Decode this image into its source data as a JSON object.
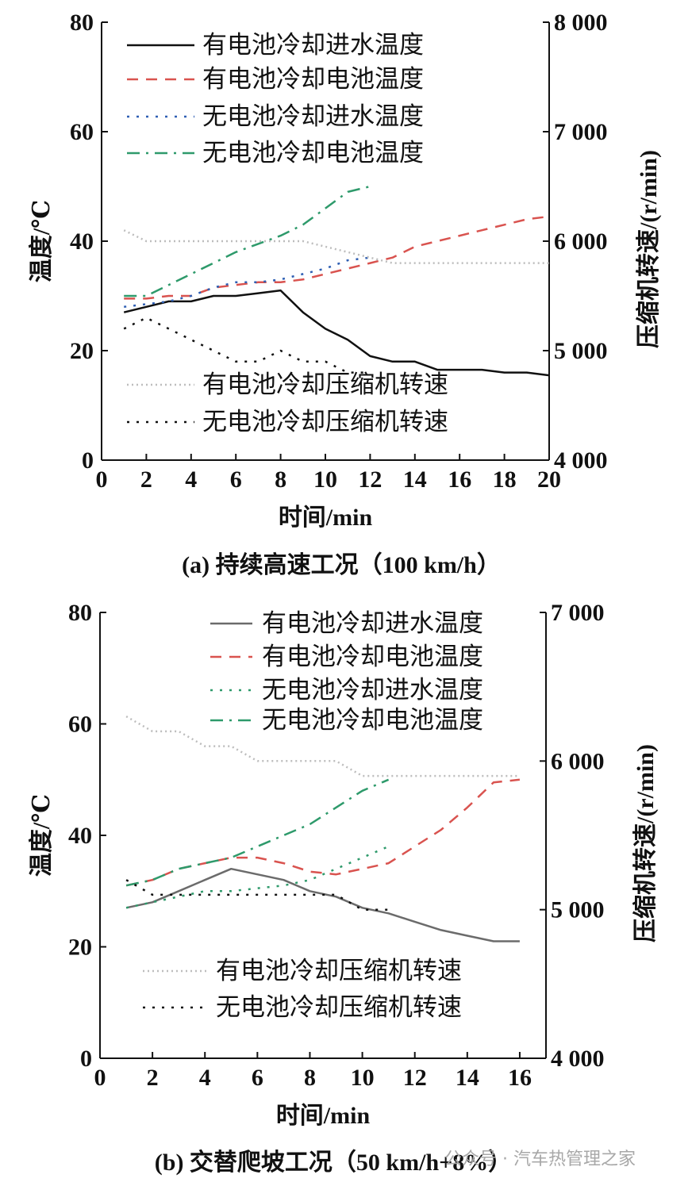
{
  "chart_data": [
    {
      "type": "line",
      "caption": "(a)  持续高速工况（100 km/h）",
      "xlabel": "时间/min",
      "ylabel": "温度/℃",
      "y2label": "压缩机转速/(r/min)",
      "xlim": [
        0,
        20
      ],
      "ylim": [
        0,
        80
      ],
      "y2lim": [
        4000,
        8000
      ],
      "xticks": [
        0,
        2,
        4,
        6,
        8,
        10,
        12,
        14,
        16,
        18,
        20
      ],
      "yticks": [
        0,
        20,
        40,
        60,
        80
      ],
      "y2ticks": [
        4000,
        5000,
        6000,
        7000,
        8000
      ],
      "y2ticklabels": [
        "4 000",
        "5 000",
        "6 000",
        "7 000",
        "8 000"
      ],
      "series": [
        {
          "name": "有电池冷却进水温度",
          "axis": "left",
          "color": "#111111",
          "style": "solid",
          "x": [
            1,
            2,
            3,
            4,
            5,
            6,
            7,
            8,
            9,
            10,
            11,
            12,
            13,
            14,
            15,
            16,
            17,
            18,
            19,
            20
          ],
          "y": [
            27,
            28,
            29,
            29,
            30,
            30,
            30.5,
            31,
            27,
            24,
            22,
            19,
            18,
            18,
            16.5,
            16.5,
            16.5,
            16,
            16,
            15.5
          ]
        },
        {
          "name": "有电池冷却电池温度",
          "axis": "left",
          "color": "#d9534f",
          "style": "dash",
          "x": [
            1,
            2,
            3,
            4,
            5,
            6,
            7,
            8,
            9,
            10,
            11,
            12,
            13,
            14,
            15,
            16,
            17,
            18,
            19,
            20
          ],
          "y": [
            29.5,
            29.5,
            30,
            30,
            31.5,
            32,
            32.5,
            32.5,
            33,
            34,
            35,
            36,
            37,
            39,
            40,
            41,
            42,
            43,
            44,
            44.5
          ]
        },
        {
          "name": "无电池冷却进水温度",
          "axis": "left",
          "color": "#2f5fb3",
          "style": "dot",
          "x": [
            1,
            2,
            3,
            4,
            5,
            6,
            7,
            8,
            9,
            10,
            11,
            12
          ],
          "y": [
            28,
            28.5,
            29,
            30,
            31.5,
            32.5,
            32.5,
            33,
            34,
            35,
            36.5,
            37
          ]
        },
        {
          "name": "无电池冷却电池温度",
          "axis": "left",
          "color": "#2e9a6b",
          "style": "dashdot",
          "x": [
            1,
            2,
            3,
            4,
            5,
            6,
            7,
            8,
            9,
            10,
            11,
            12
          ],
          "y": [
            30,
            30,
            32,
            34,
            36,
            38,
            39.5,
            41,
            43,
            46,
            49,
            50
          ]
        },
        {
          "name": "有电池冷却压缩机转速",
          "axis": "right",
          "color": "#bdbdbd",
          "style": "finedot",
          "x": [
            1,
            2,
            3,
            4,
            5,
            6,
            7,
            8,
            9,
            10,
            11,
            12,
            13,
            14,
            15,
            16,
            17,
            18,
            19,
            20
          ],
          "y": [
            6100,
            6000,
            6000,
            6000,
            6000,
            6000,
            6000,
            6000,
            6000,
            5950,
            5900,
            5850,
            5800,
            5800,
            5800,
            5800,
            5800,
            5800,
            5800,
            5800
          ]
        },
        {
          "name": "无电池冷却压缩机转速",
          "axis": "right",
          "color": "#111111",
          "style": "dot",
          "x": [
            1,
            2,
            3,
            4,
            5,
            6,
            7,
            8,
            9,
            10,
            11,
            12
          ],
          "y": [
            5200,
            5300,
            5200,
            5100,
            5000,
            4900,
            4900,
            5000,
            4900,
            4900,
            4800,
            4800
          ]
        }
      ]
    },
    {
      "type": "line",
      "caption": "(b)  交替爬坡工况（50 km/h+8%）",
      "xlabel": "时间/min",
      "ylabel": "温度/℃",
      "y2label": "压缩机转速/(r/min)",
      "xlim": [
        0,
        17
      ],
      "ylim": [
        0,
        80
      ],
      "y2lim": [
        4000,
        7000
      ],
      "xticks": [
        0,
        2,
        4,
        6,
        8,
        10,
        12,
        14,
        16
      ],
      "yticks": [
        0,
        20,
        40,
        60,
        80
      ],
      "y2ticks": [
        4000,
        5000,
        6000,
        7000
      ],
      "y2ticklabels": [
        "4 000",
        "5 000",
        "6 000",
        "7 000"
      ],
      "series": [
        {
          "name": "有电池冷却进水温度",
          "axis": "left",
          "color": "#6b6b6b",
          "style": "solid",
          "x": [
            1,
            2,
            3,
            4,
            5,
            6,
            7,
            8,
            9,
            10,
            11,
            12,
            13,
            14,
            15,
            16
          ],
          "y": [
            27,
            28,
            30,
            32,
            34,
            33,
            32,
            30,
            29,
            27,
            26,
            24.5,
            23,
            22,
            21,
            21
          ]
        },
        {
          "name": "有电池冷却电池温度",
          "axis": "left",
          "color": "#d9534f",
          "style": "dash",
          "x": [
            1,
            2,
            3,
            4,
            5,
            6,
            7,
            8,
            9,
            10,
            11,
            12,
            13,
            14,
            15,
            16
          ],
          "y": [
            31,
            32,
            34,
            35,
            36,
            36,
            35,
            33.5,
            33,
            34,
            35,
            38,
            41,
            45,
            49.5,
            50
          ]
        },
        {
          "name": "无电池冷却进水温度",
          "axis": "left",
          "color": "#2e9a6b",
          "style": "dot",
          "x": [
            1,
            2,
            3,
            4,
            5,
            6,
            7,
            8,
            9,
            10,
            11
          ],
          "y": [
            27,
            28,
            29,
            30,
            30,
            30.5,
            31,
            32,
            34,
            36,
            38
          ]
        },
        {
          "name": "无电池冷却电池温度",
          "axis": "left",
          "color": "#2e9a6b",
          "style": "dashdot",
          "x": [
            1,
            2,
            3,
            4,
            5,
            6,
            7,
            8,
            9,
            10,
            11
          ],
          "y": [
            31,
            32,
            34,
            35,
            36,
            38,
            40,
            42,
            45,
            48,
            50
          ]
        },
        {
          "name": "有电池冷却压缩机转速",
          "axis": "right",
          "color": "#bdbdbd",
          "style": "finedot",
          "x": [
            1,
            2,
            3,
            4,
            5,
            6,
            7,
            8,
            9,
            10,
            11,
            12,
            13,
            14,
            15,
            16
          ],
          "y": [
            6300,
            6200,
            6200,
            6100,
            6100,
            6000,
            6000,
            6000,
            6000,
            5900,
            5900,
            5900,
            5900,
            5900,
            5900,
            5900
          ]
        },
        {
          "name": "无电池冷却压缩机转速",
          "axis": "right",
          "color": "#111111",
          "style": "dot",
          "x": [
            1,
            2,
            3,
            4,
            5,
            6,
            7,
            8,
            9,
            10,
            11
          ],
          "y": [
            5200,
            5100,
            5100,
            5100,
            5100,
            5100,
            5100,
            5100,
            5100,
            5000,
            5000
          ]
        }
      ]
    }
  ],
  "watermark": "公众号 · 汽车热管理之家"
}
